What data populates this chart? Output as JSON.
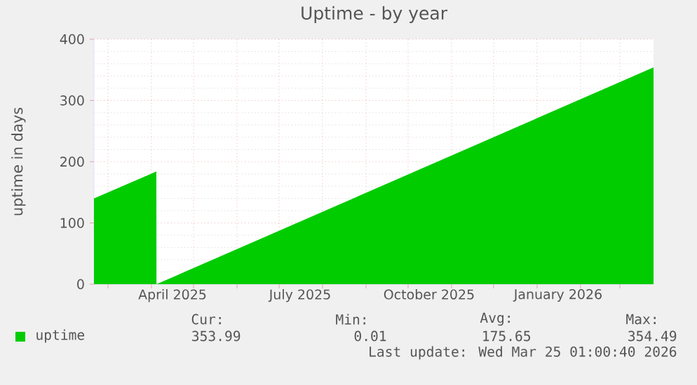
{
  "chart_data": {
    "type": "area",
    "title": "Uptime - by year",
    "ylabel": "uptime in days",
    "xlim": [
      "2025-02-19",
      "2026-03-25T01:00"
    ],
    "ylim": [
      0,
      400
    ],
    "yticks": [
      0,
      100,
      200,
      300,
      400
    ],
    "xticks": [
      {
        "value": "2025-03-01",
        "label": null
      },
      {
        "value": "2025-04-01",
        "label": null
      },
      {
        "value": "2025-05-01",
        "label": null
      },
      {
        "value": "2025-06-01",
        "label": null
      },
      {
        "value": "2025-07-01",
        "label": null
      },
      {
        "value": "2025-08-01",
        "label": null
      },
      {
        "value": "2025-09-01",
        "label": null
      },
      {
        "value": "2025-10-01",
        "label": null
      },
      {
        "value": "2025-11-01",
        "label": null
      },
      {
        "value": "2025-12-01",
        "label": null
      },
      {
        "value": "2026-01-01",
        "label": null
      },
      {
        "value": "2026-02-01",
        "label": null
      },
      {
        "value": "2026-03-01",
        "label": null
      },
      {
        "value": "2025-04-16",
        "label": "April 2025"
      },
      {
        "value": "2025-07-16",
        "label": "July 2025"
      },
      {
        "value": "2025-10-16",
        "label": "October 2025"
      },
      {
        "value": "2026-01-16",
        "label": "January 2026"
      }
    ],
    "grid": true,
    "legend": "bottom",
    "series": [
      {
        "name": "uptime",
        "color": "#00cc00",
        "x": [
          "2025-02-19",
          "2025-04-04T12:00",
          "2025-04-04T14:00",
          "2026-03-25T01:00"
        ],
        "values": [
          140,
          184,
          0,
          354
        ]
      }
    ],
    "annotations": [
      "Cur:",
      "Min:",
      "Avg:",
      "Max:",
      "353.99",
      "0.01",
      "175.65",
      "354.49",
      "Last update: Wed Mar 25 01:00:40 2026"
    ]
  }
}
